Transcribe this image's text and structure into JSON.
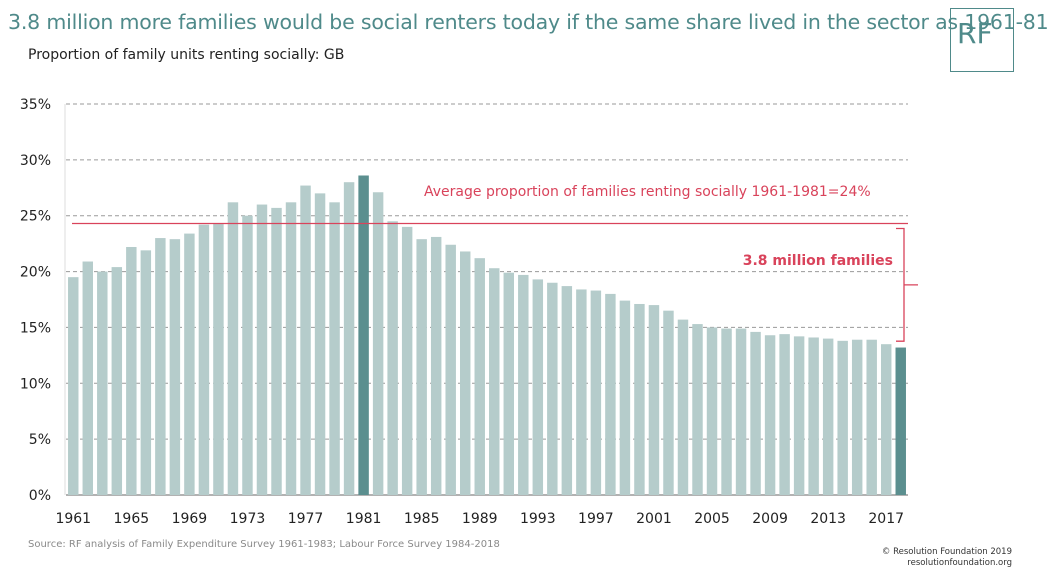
{
  "title": "3.8 million more families would be social renters today if the same share lived in the sector as 1961-81",
  "subtitle": "Proportion of family units renting socially: GB",
  "logo": "RF",
  "source": "Source: RF analysis of Family Expenditure Survey 1961-1983; Labour Force Survey 1984-2018",
  "copyright": "© Resolution Foundation 2019",
  "website": "resolutionfoundation.org",
  "colors": {
    "bar": "#b5cccb",
    "highlight": "#5b8f8f",
    "accent": "#d9435b",
    "title": "#4f8a8a"
  },
  "chart_data": {
    "type": "bar",
    "categories": [
      "1961",
      "1962",
      "1963",
      "1964",
      "1965",
      "1966",
      "1967",
      "1968",
      "1969",
      "1970",
      "1971",
      "1972",
      "1973",
      "1974",
      "1975",
      "1976",
      "1977",
      "1978",
      "1979",
      "1980",
      "1981",
      "1982",
      "1983",
      "1984",
      "1985",
      "1986",
      "1987",
      "1988",
      "1989",
      "1990",
      "1991",
      "1992",
      "1993",
      "1994",
      "1995",
      "1996",
      "1997",
      "1998",
      "1999",
      "2000",
      "2001",
      "2002",
      "2003",
      "2004",
      "2005",
      "2006",
      "2007",
      "2008",
      "2009",
      "2010",
      "2011",
      "2012",
      "2013",
      "2014",
      "2015",
      "2016",
      "2017",
      "2018"
    ],
    "values": [
      19.5,
      20.9,
      20.0,
      20.4,
      22.2,
      21.9,
      23.0,
      22.9,
      23.4,
      24.2,
      24.3,
      26.2,
      25.0,
      26.0,
      25.7,
      26.2,
      27.7,
      27.0,
      26.2,
      28.0,
      28.6,
      27.1,
      24.5,
      24.0,
      22.9,
      23.1,
      22.4,
      21.8,
      21.2,
      20.3,
      19.9,
      19.7,
      19.3,
      19.0,
      18.7,
      18.4,
      18.3,
      18.0,
      17.4,
      17.1,
      17.0,
      16.5,
      15.7,
      15.3,
      15.0,
      14.9,
      14.9,
      14.6,
      14.3,
      14.4,
      14.2,
      14.1,
      14.0,
      13.8,
      13.9,
      13.9,
      13.5,
      13.2
    ],
    "highlighted": [
      "1981",
      "2018"
    ],
    "tick_labels": [
      "1961",
      "1965",
      "1969",
      "1973",
      "1977",
      "1981",
      "1985",
      "1989",
      "1993",
      "1997",
      "2001",
      "2005",
      "2009",
      "2013",
      "2017"
    ],
    "ylim": [
      0,
      35
    ],
    "yticks": [
      "0%",
      "5%",
      "10%",
      "15%",
      "20%",
      "25%",
      "30%",
      "35%"
    ],
    "grid": true,
    "reference_line": {
      "value": 24.3,
      "label": "Average proportion of families renting socially 1961-1981=24%"
    },
    "bracket_label": "3.8 million families"
  }
}
